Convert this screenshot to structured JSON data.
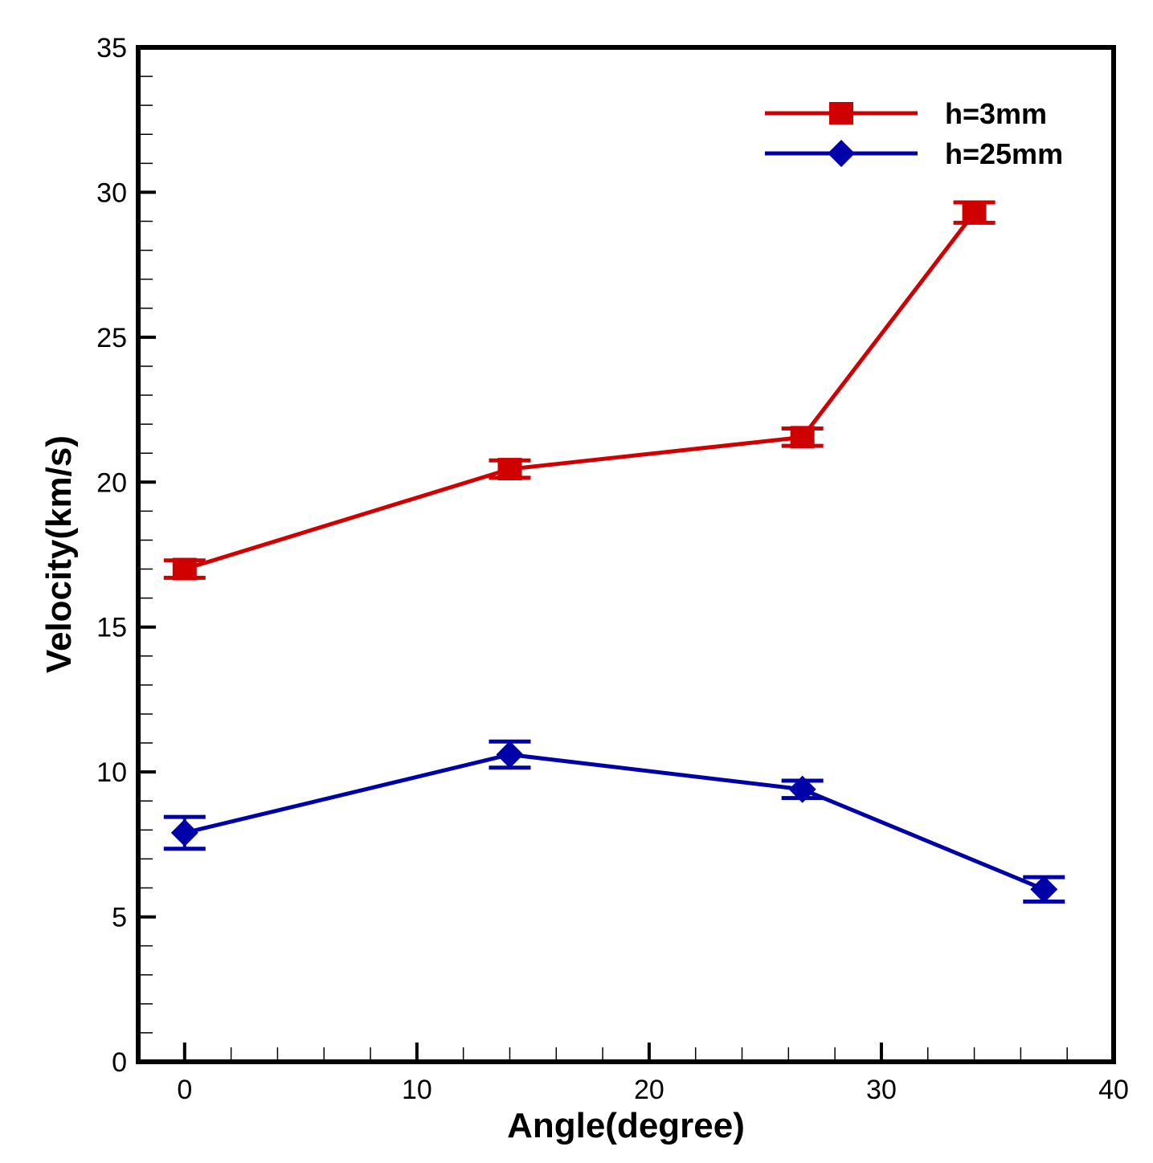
{
  "chart_data": {
    "type": "line",
    "title": "",
    "xlabel": "Angle(degree)",
    "ylabel": "Velocity(km/s)",
    "xlim": [
      -2,
      40
    ],
    "ylim": [
      0,
      35
    ],
    "x_ticks": [
      0,
      10,
      20,
      30,
      40
    ],
    "y_ticks": [
      0,
      5,
      10,
      15,
      20,
      25,
      30,
      35
    ],
    "x_tick_labels": [
      "0",
      "10",
      "20",
      "30",
      "40"
    ],
    "y_tick_labels": [
      "0",
      "5",
      "10",
      "15",
      "20",
      "25",
      "30",
      "35"
    ],
    "x_minor_step": 2,
    "y_minor_step": 1,
    "grid": false,
    "legend_position": "top-right",
    "series": [
      {
        "name": "h=3mm",
        "color": "#d10000",
        "marker": "square",
        "x": [
          0,
          14,
          26.6,
          34
        ],
        "y": [
          17.0,
          20.45,
          21.55,
          29.3
        ],
        "error": [
          0.3,
          0.3,
          0.3,
          0.35
        ]
      },
      {
        "name": "h=25mm",
        "color": "#0000a8",
        "marker": "diamond",
        "x": [
          0,
          14,
          26.6,
          37
        ],
        "y": [
          7.9,
          10.6,
          9.4,
          5.95
        ],
        "error": [
          0.55,
          0.45,
          0.3,
          0.42
        ]
      }
    ]
  }
}
